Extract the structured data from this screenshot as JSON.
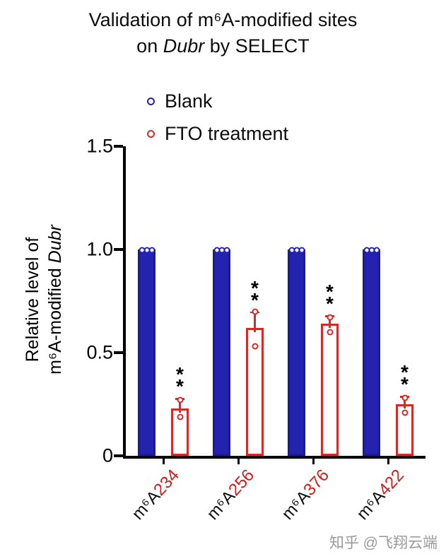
{
  "title": {
    "line1": "Validation of  m⁶A-modified sites",
    "line2_pre": "on ",
    "line2_italic": "Dubr",
    "line2_post": " by SELECT"
  },
  "legend": {
    "items": [
      {
        "label": "Blank",
        "color": "#2323b0"
      },
      {
        "label": "FTO treatment",
        "color": "#d42a2a"
      }
    ]
  },
  "chart_data": {
    "type": "bar",
    "title": "Validation of m⁶A-modified sites on Dubr by SELECT",
    "categories": [
      {
        "prefix": "m⁶A",
        "number": "234"
      },
      {
        "prefix": "m⁶A",
        "number": "256"
      },
      {
        "prefix": "m⁶A",
        "number": "376"
      },
      {
        "prefix": "m⁶A",
        "number": "422"
      }
    ],
    "series": [
      {
        "name": "Blank",
        "color": "#2323b0",
        "values": [
          1.0,
          1.0,
          1.0,
          1.0
        ],
        "points": [
          [
            1.0,
            1.0,
            1.0
          ],
          [
            1.0,
            1.0,
            1.0
          ],
          [
            1.0,
            1.0,
            1.0
          ],
          [
            1.0,
            1.0,
            1.0
          ]
        ],
        "style": "solid"
      },
      {
        "name": "FTO treatment",
        "color": "#d42a2a",
        "values": [
          0.23,
          0.62,
          0.64,
          0.25
        ],
        "errors": [
          0.05,
          0.08,
          0.04,
          0.04
        ],
        "points": [
          [
            0.19,
            0.27
          ],
          [
            0.53,
            0.7
          ],
          [
            0.6,
            0.67
          ],
          [
            0.21,
            0.28
          ]
        ],
        "style": "open"
      }
    ],
    "significance": [
      "**",
      "**",
      "**",
      "**"
    ],
    "ylabel": {
      "line1": "Relative level of",
      "line2_pre": "m⁶A-modified ",
      "line2_italic": "Dubr"
    },
    "yticks": [
      "0",
      "0.5",
      "1.0",
      "1.5"
    ],
    "ytick_values": [
      0,
      0.5,
      1.0,
      1.5
    ],
    "ylim": [
      0,
      1.5
    ],
    "grid": "off",
    "legend_position": "top-center",
    "axis_color": "#000000",
    "category_number_color": "#cc2020"
  },
  "watermark": {
    "text": "知乎 @飞翔云端"
  }
}
